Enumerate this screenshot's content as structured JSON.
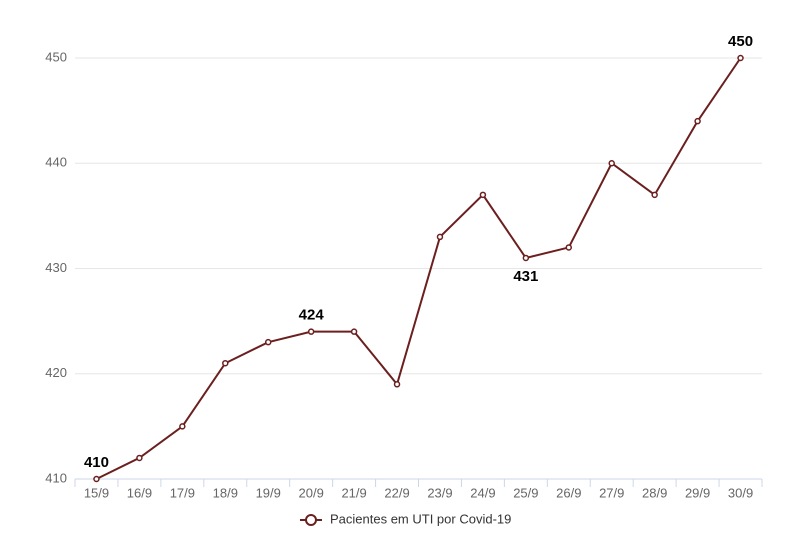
{
  "chart_data": {
    "type": "line",
    "categories": [
      "15/9",
      "16/9",
      "17/9",
      "18/9",
      "19/9",
      "20/9",
      "21/9",
      "22/9",
      "23/9",
      "24/9",
      "25/9",
      "26/9",
      "27/9",
      "28/9",
      "29/9",
      "30/9"
    ],
    "series": [
      {
        "name": "Pacientes em UTI por Covid-19",
        "color": "#6b1f1f",
        "values": [
          410,
          412,
          415,
          421,
          423,
          424,
          424,
          419,
          433,
          437,
          431,
          432,
          440,
          437,
          444,
          450
        ]
      }
    ],
    "labeled_points": [
      {
        "index": 0,
        "position": "above"
      },
      {
        "index": 5,
        "position": "above"
      },
      {
        "index": 10,
        "position": "below"
      },
      {
        "index": 15,
        "position": "above"
      }
    ],
    "ylim": [
      410,
      450
    ],
    "yticks": [
      410,
      420,
      430,
      440,
      450
    ],
    "grid": true,
    "legend": "bottom"
  }
}
